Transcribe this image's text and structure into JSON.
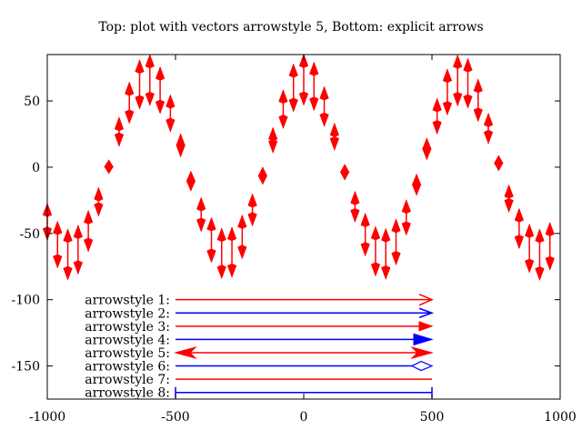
{
  "chart_data": {
    "type": "line",
    "title": "Top: plot with vectors arrowstyle 5, Bottom: explicit arrows",
    "xlabel": "",
    "ylabel": "",
    "xlim": [
      -1000,
      1000
    ],
    "ylim": [
      -175,
      85
    ],
    "xticks": [
      -1000,
      -500,
      0,
      500,
      1000
    ],
    "yticks": [
      50,
      0,
      -50,
      -100,
      -150
    ],
    "grid": false,
    "colors": {
      "vectors": "#ff0000",
      "blue": "#0000ff",
      "axes": "#000000"
    },
    "series": [
      {
        "style": "vectors arrowstyle 5",
        "color": "#ff0000",
        "x_start": -1000,
        "x_end": 960,
        "x_step": 40,
        "amplitude": 80,
        "period": 610,
        "phase": 1.55,
        "dx": 0,
        "dy_factor": 0.35
      }
    ],
    "arrows": [
      {
        "label": "arrowstyle 1:",
        "style": 1,
        "color": "#ff0000",
        "x_from": -500,
        "x_to": 500,
        "y": -100,
        "head": "open-end"
      },
      {
        "label": "arrowstyle 2:",
        "style": 2,
        "color": "#0000ff",
        "x_from": -500,
        "x_to": 500,
        "y": -110,
        "head": "empty-end"
      },
      {
        "label": "arrowstyle 3:",
        "style": 3,
        "color": "#ff0000",
        "x_from": -500,
        "x_to": 500,
        "y": -120,
        "head": "filled-end"
      },
      {
        "label": "arrowstyle 4:",
        "style": 4,
        "color": "#0000ff",
        "x_from": -500,
        "x_to": 500,
        "y": -130,
        "head": "filled-end-large"
      },
      {
        "label": "arrowstyle 5:",
        "style": 5,
        "color": "#ff0000",
        "x_from": -500,
        "x_to": 500,
        "y": -140,
        "head": "filled-both"
      },
      {
        "label": "arrowstyle 6:",
        "style": 6,
        "color": "#0000ff",
        "x_from": -500,
        "x_to": 500,
        "y": -150,
        "head": "diamond-end"
      },
      {
        "label": "arrowstyle 7:",
        "style": 7,
        "color": "#ff0000",
        "x_from": -500,
        "x_to": 500,
        "y": -160,
        "head": "none"
      },
      {
        "label": "arrowstyle 8:",
        "style": 8,
        "color": "#0000ff",
        "x_from": -500,
        "x_to": 500,
        "y": -170,
        "head": "bar-both"
      }
    ]
  }
}
